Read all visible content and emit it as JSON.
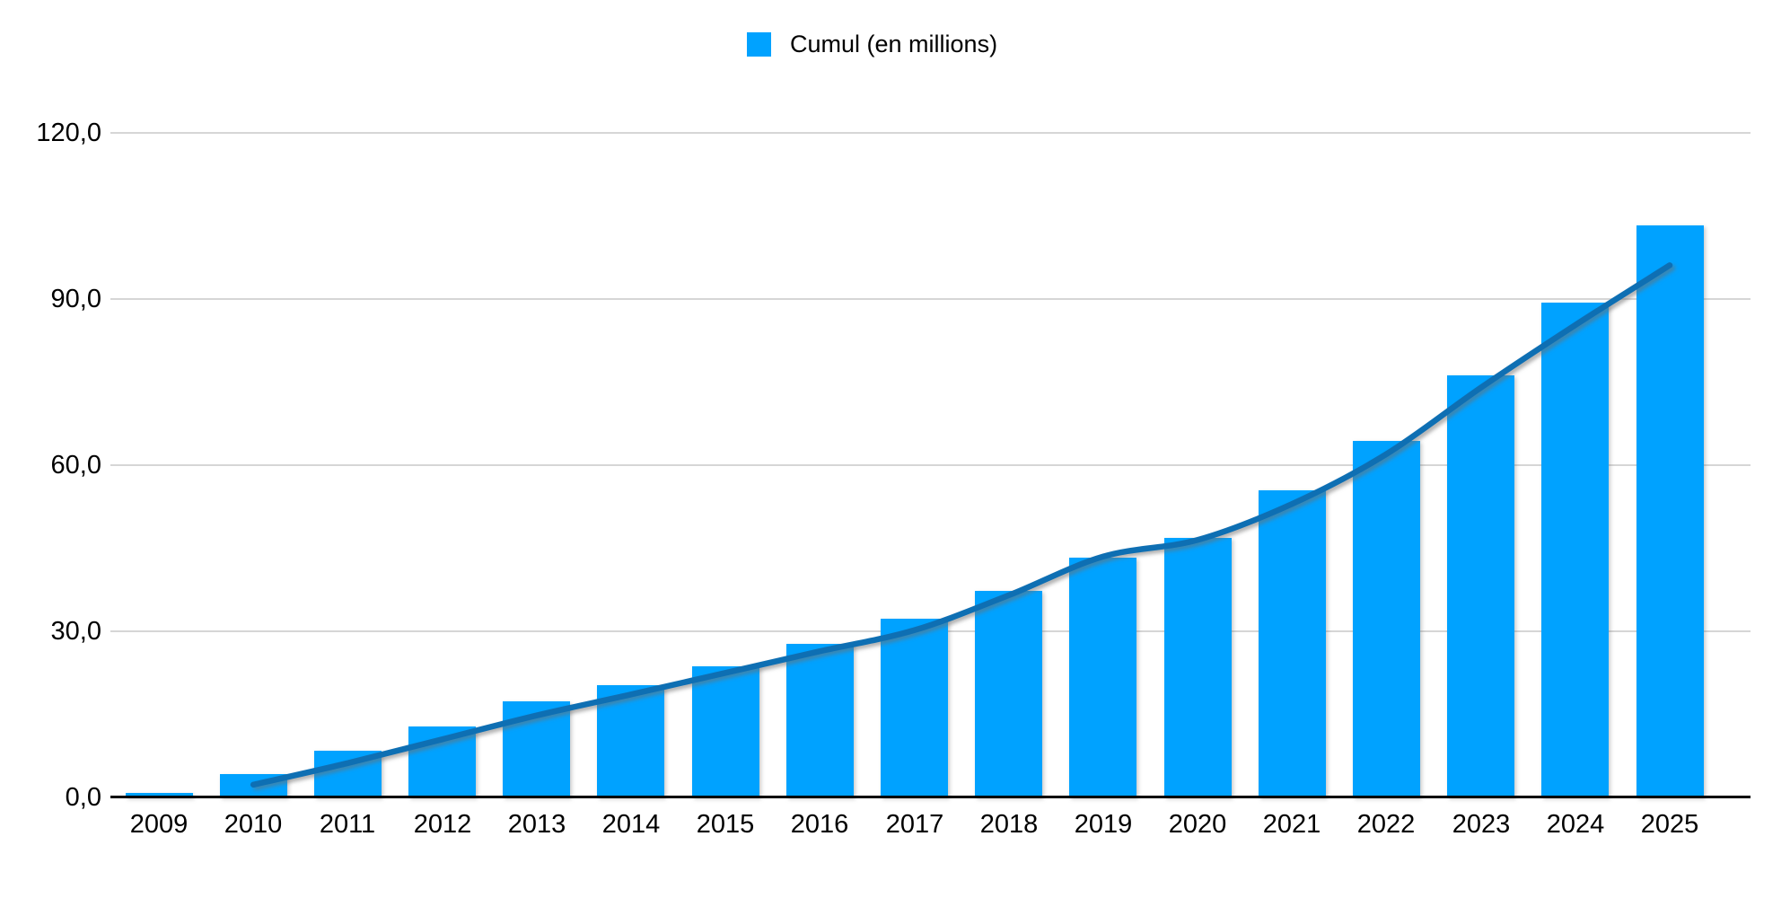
{
  "legend": {
    "label": "Cumul (en millions)",
    "swatch_color": "#00A2FF"
  },
  "chart_data": {
    "type": "bar",
    "title": "",
    "xlabel": "",
    "ylabel": "",
    "categories": [
      "2009",
      "2010",
      "2011",
      "2012",
      "2013",
      "2014",
      "2015",
      "2016",
      "2017",
      "2018",
      "2019",
      "2020",
      "2021",
      "2022",
      "2023",
      "2024",
      "2025"
    ],
    "series": [
      {
        "name": "Cumul (en millions)",
        "type": "bar",
        "color": "#00A2FF",
        "values": [
          0.9,
          4.2,
          8.4,
          12.8,
          17.3,
          20.3,
          23.7,
          27.7,
          32.3,
          37.3,
          43.3,
          46.9,
          55.5,
          64.4,
          76.2,
          89.4,
          103.3
        ]
      },
      {
        "name": "trend-line",
        "type": "line",
        "color": "#0E6FB3",
        "x": [
          "2010",
          "2011",
          "2012",
          "2013",
          "2014",
          "2015",
          "2016",
          "2017",
          "2018",
          "2019",
          "2020",
          "2021",
          "2022",
          "2023",
          "2024",
          "2025"
        ],
        "values": [
          2.3,
          6.2,
          10.5,
          14.8,
          18.6,
          22.5,
          26.4,
          30.2,
          36.5,
          43.5,
          46.5,
          53.0,
          62.0,
          74.0,
          85.3,
          96.1
        ]
      }
    ],
    "ylim": [
      0,
      120
    ],
    "yticks": [
      {
        "value": 0,
        "label": "0,0"
      },
      {
        "value": 30,
        "label": "30,0"
      },
      {
        "value": 60,
        "label": "60,0"
      },
      {
        "value": 90,
        "label": "90,0"
      },
      {
        "value": 120,
        "label": "120,0"
      }
    ],
    "grid": "horizontal",
    "legend_position": "top-center",
    "number_format": "fr-decimal-comma"
  },
  "colors": {
    "bar": "#00A2FF",
    "trend_line": "#0E6FB3",
    "gridline": "#D6D6D6",
    "axis": "#000000",
    "text": "#000000",
    "background": "#FFFFFF"
  }
}
